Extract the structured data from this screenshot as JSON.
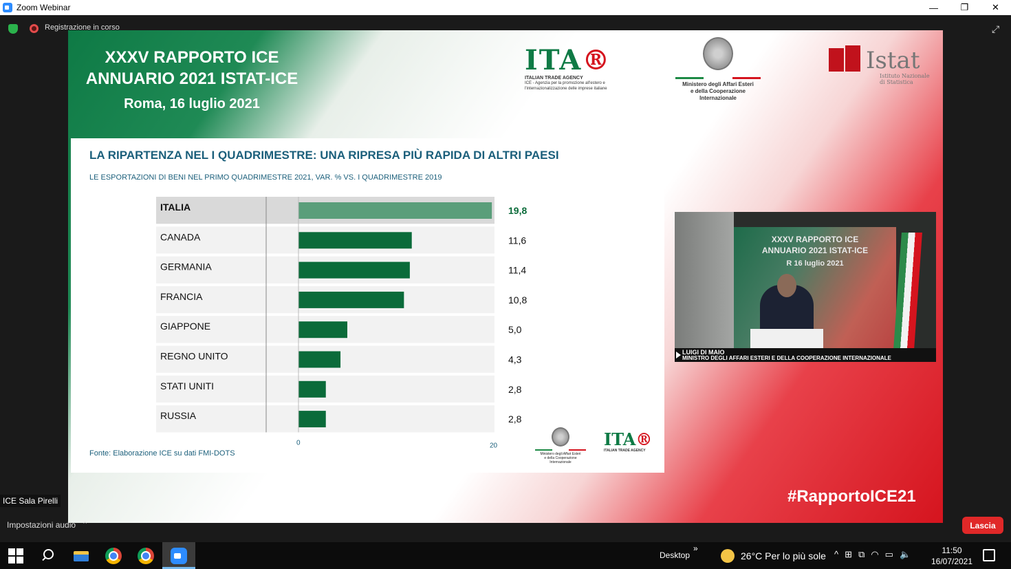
{
  "window": {
    "title": "Zoom Webinar",
    "controls": {
      "minimize": "—",
      "restore": "❐",
      "close": "✕"
    }
  },
  "meeting": {
    "recording_label": "Registrazione in corso",
    "speaker_label": "ICE Sala Pirelli",
    "audio_settings_label": "Impostazioni audio",
    "leave_label": "Lascia"
  },
  "slide": {
    "title_line1": "XXXV RAPPORTO ICE",
    "title_line2": "ANNUARIO 2021 ISTAT-ICE",
    "date": "Roma, 16 luglio 2021",
    "ita_logo": {
      "mark": "ITA",
      "line1": "ITALIAN TRADE AGENCY",
      "line2": "ICE - Agenzia per la promozione all'estero e",
      "line3": "l'internazionalizzazione delle imprese italiane"
    },
    "maeci_logo": {
      "line1": "Ministero degli Affari Esteri",
      "line2": "e della Cooperazione Internazionale"
    },
    "istat_logo": {
      "name": "Istat",
      "line1": "Istituto Nazionale",
      "line2": "di Statistica"
    },
    "panel": {
      "title": "LA RIPARTENZA NEL I QUADRIMESTRE: UNA RIPRESA PIÙ RAPIDA DI ALTRI PAESI",
      "subtitle": "LE ESPORTAZIONI DI BENI NEL PRIMO QUADRIMESTRE 2021, VAR. % VS. I QUADRIMESTRE 2019",
      "source": "Fonte: Elaborazione ICE su dati FMI-DOTS",
      "small_maeci_line1": "Ministero degli Affari Esteri",
      "small_maeci_line2": "e della Cooperazione Internazionale",
      "small_ita_line": "ITALIAN TRADE AGENCY"
    },
    "hashtag": "#RapportoICE21"
  },
  "video": {
    "backdrop_title_line1": "XXXV RAPPORTO ICE",
    "backdrop_title_line2": "ANNUARIO 2021 ISTAT-ICE",
    "backdrop_date": "R     16 luglio 2021",
    "speaker_name": "LUIGI DI MAIO",
    "speaker_role": "MINISTRO DEGLI AFFARI ESTERI E DELLA COOPERAZIONE INTERNAZIONALE"
  },
  "chart_data": {
    "type": "bar",
    "orientation": "horizontal",
    "categories": [
      "ITALIA",
      "CANADA",
      "GERMANIA",
      "FRANCIA",
      "GIAPPONE",
      "REGNO UNITO",
      "STATI UNITI",
      "RUSSIA"
    ],
    "values": [
      19.8,
      11.6,
      11.4,
      10.8,
      5.0,
      4.3,
      2.8,
      2.8
    ],
    "value_labels": [
      "19,8",
      "11,6",
      "11,4",
      "10,8",
      "5,0",
      "4,3",
      "2,8",
      "2,8"
    ],
    "highlight": "ITALIA",
    "xlim": [
      0,
      20
    ],
    "x_ticks": [
      "0",
      "20"
    ],
    "colors": {
      "bar": "#0b6b3a",
      "highlight_bar": "#5a9e7a",
      "highlight_row": "#d9d9d9",
      "row": "#f2f2f2",
      "highlight_value": "#0b6b3a"
    },
    "title": "LA RIPARTENZA NEL I QUADRIMESTRE: UNA RIPRESA PIÙ RAPIDA DI ALTRI PAESI"
  },
  "taskbar": {
    "desktop_label": "Desktop",
    "desktop_chevron": "»",
    "weather": "26°C  Per lo più sole",
    "time": "11:50",
    "date": "16/07/2021",
    "tray_icons": [
      "^",
      "⊞",
      "⧉",
      "◠",
      "▭",
      "🔈"
    ]
  }
}
